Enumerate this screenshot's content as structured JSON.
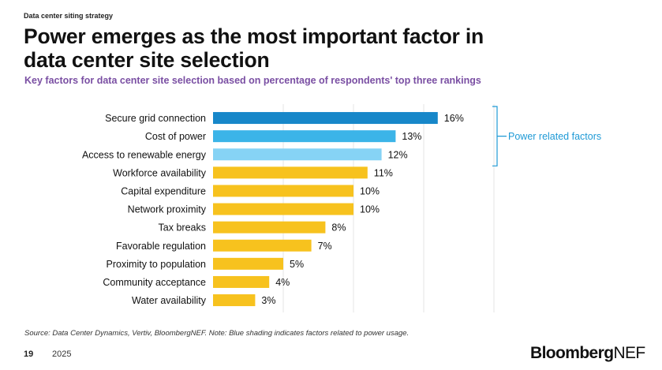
{
  "header": {
    "kicker": "Data center siting strategy",
    "title": "Power emerges as the most important factor in data center site selection",
    "subtitle": "Key factors for data center site selection based on percentage of respondents' top three rankings"
  },
  "chart_data": {
    "type": "bar",
    "orientation": "horizontal",
    "categories": [
      "Secure grid connection",
      "Cost of power",
      "Access to renewable energy",
      "Workforce availability",
      "Capital expenditure",
      "Network proximity",
      "Tax breaks",
      "Favorable regulation",
      "Proximity to population",
      "Community acceptance",
      "Water availability"
    ],
    "values": [
      16,
      13,
      12,
      11,
      10,
      10,
      8,
      7,
      5,
      4,
      3
    ],
    "value_labels": [
      "16%",
      "13%",
      "12%",
      "11%",
      "10%",
      "10%",
      "8%",
      "7%",
      "5%",
      "4%",
      "3%"
    ],
    "bar_colors": [
      "#1787c9",
      "#3cb4e8",
      "#86d3f5",
      "#f7c21e",
      "#f7c21e",
      "#f7c21e",
      "#f7c21e",
      "#f7c21e",
      "#f7c21e",
      "#f7c21e",
      "#f7c21e"
    ],
    "xlim": [
      0,
      20
    ],
    "grid": true,
    "annotation": {
      "label": "Power related factors",
      "covers_categories": [
        0,
        1,
        2
      ],
      "color": "#1f9ad6"
    }
  },
  "footer": {
    "source": "Source: Data Center Dynamics, Vertiv, BloombergNEF. Note: Blue shading indicates factors related to power usage.",
    "page_number": "19",
    "year": "2025",
    "logo_bold": "Bloomberg",
    "logo_light": "NEF"
  }
}
